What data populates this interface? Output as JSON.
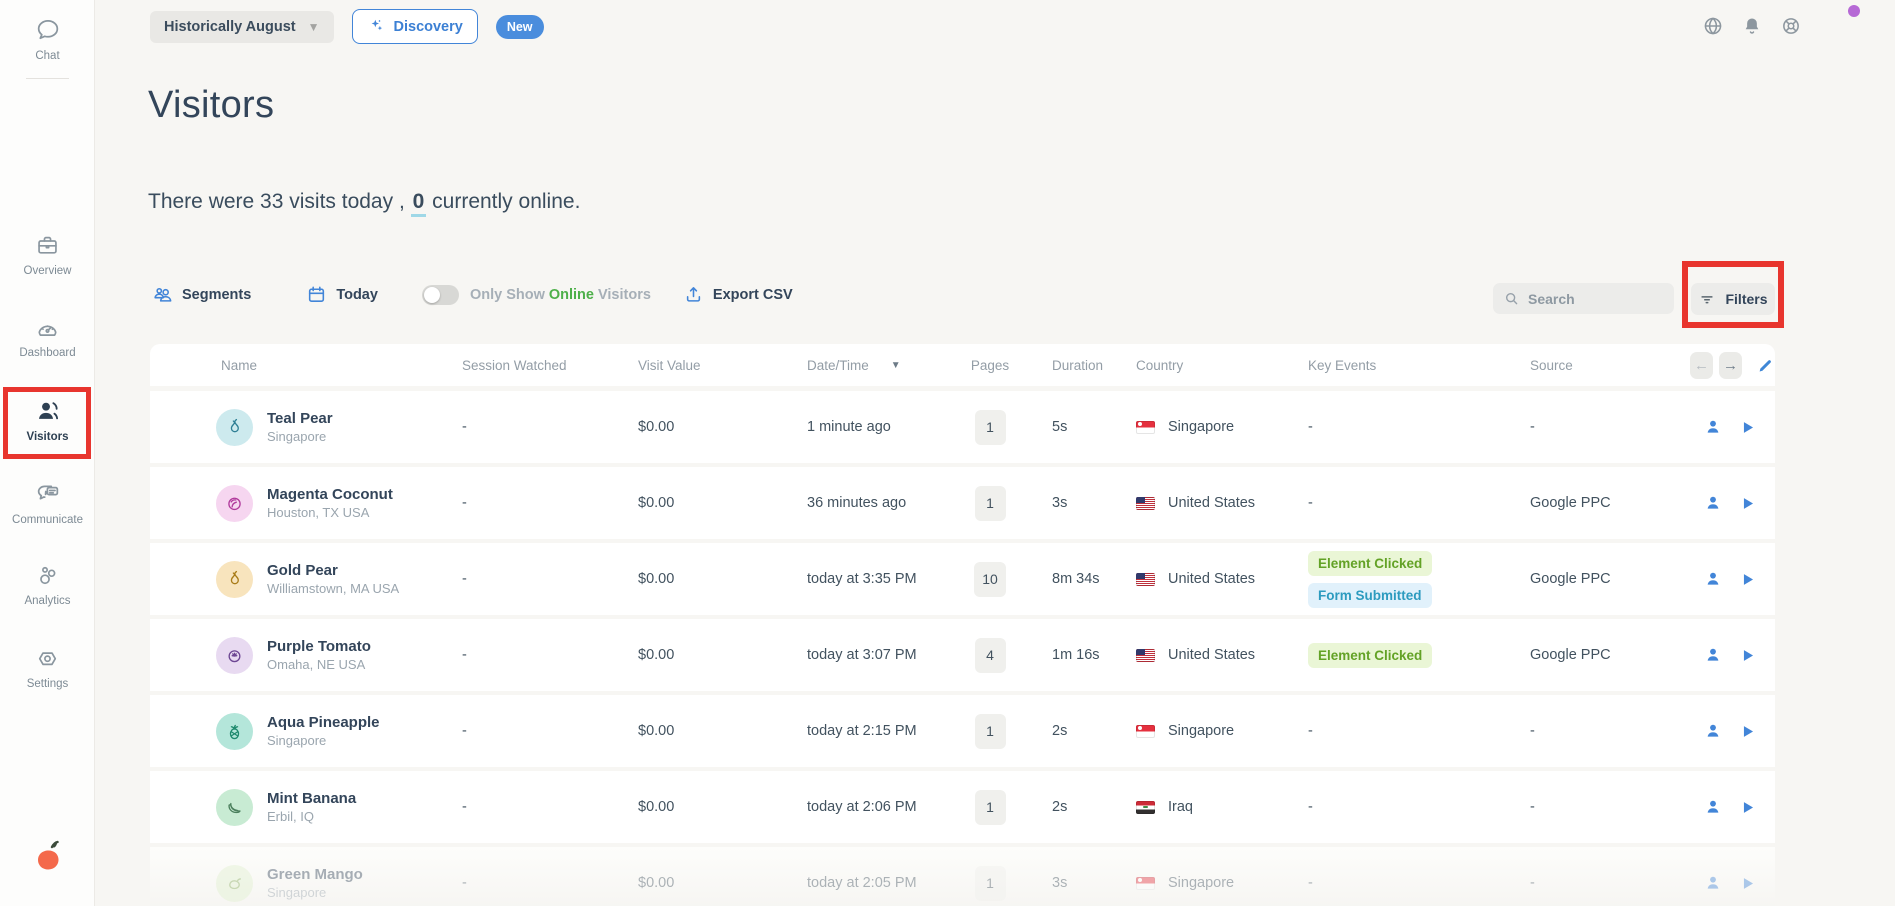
{
  "colors": {
    "accent_blue": "#4285d8",
    "navy_text": "#33455a",
    "annotation_red": "#e8352e",
    "online_green": "#4eb04a",
    "page_background": "#f7f6f3",
    "badge_green_bg": "#eaf6d6",
    "badge_green_fg": "#63a226",
    "badge_blue_bg": "#e1f1fb",
    "badge_blue_fg": "#2c9bbf"
  },
  "sidebar": {
    "items": [
      {
        "label": "Chat",
        "icon": "chat-bubble-icon"
      },
      {
        "label": "Overview",
        "icon": "briefcase-icon"
      },
      {
        "label": "Dashboard",
        "icon": "gauge-icon"
      },
      {
        "label": "Visitors",
        "icon": "visitors-people-icon",
        "active": true,
        "highlighted": true
      },
      {
        "label": "Communicate",
        "icon": "chat-bubbles-icon"
      },
      {
        "label": "Analytics",
        "icon": "bubbles-icon"
      },
      {
        "label": "Settings",
        "icon": "hexagon-nut-icon"
      }
    ],
    "logo": "orange-fruit-logo"
  },
  "topbar": {
    "period_selector": "Historically August",
    "discovery_label": "Discovery",
    "new_badge": "New"
  },
  "header": {
    "title": "Visitors",
    "subtitle_prefix": "There were 33 visits today ,",
    "online_count": "0",
    "subtitle_suffix": "currently online."
  },
  "toolbar": {
    "segments_label": "Segments",
    "today_label": "Today",
    "online_toggle_state": "off",
    "toggle_label_part1": "Only Show",
    "toggle_label_online": "Online",
    "toggle_label_part2": "Visitors",
    "export_label": "Export CSV",
    "search_placeholder": "Search",
    "filters_label": "Filters"
  },
  "table": {
    "columns": [
      "Name",
      "Session Watched",
      "Visit Value",
      "Date/Time",
      "Pages",
      "Duration",
      "Country",
      "Key Events",
      "Source"
    ],
    "sorted_column": "Date/Time",
    "empty_placeholder": "-",
    "key_event_styles": {
      "Element Clicked": {
        "bg": "#eaf6d6",
        "fg": "#63a226"
      },
      "Form Submitted": {
        "bg": "#e1f1fb",
        "fg": "#2c9bbf"
      }
    },
    "rows": [
      {
        "name": "Teal Pear",
        "location": "Singapore",
        "fruit": "pear",
        "avatar_bg": "#cdeaee",
        "avatar_fg": "#2f7f95",
        "session_watched": "-",
        "visit_value": "$0.00",
        "datetime": "1 minute ago",
        "pages": "1",
        "duration": "5s",
        "country": "Singapore",
        "flag": "sg",
        "key_events": [],
        "source": "-",
        "faded": false
      },
      {
        "name": "Magenta Coconut",
        "location": "Houston, TX USA",
        "fruit": "coconut",
        "avatar_bg": "#f6d6f0",
        "avatar_fg": "#b13a9c",
        "session_watched": "-",
        "visit_value": "$0.00",
        "datetime": "36 minutes ago",
        "pages": "1",
        "duration": "3s",
        "country": "United States",
        "flag": "us",
        "key_events": [],
        "source": "Google PPC",
        "faded": false
      },
      {
        "name": "Gold Pear",
        "location": "Williamstown, MA USA",
        "fruit": "pear",
        "avatar_bg": "#f8e4bd",
        "avatar_fg": "#a97c18",
        "session_watched": "-",
        "visit_value": "$0.00",
        "datetime": "today at 3:35 PM",
        "pages": "10",
        "duration": "8m 34s",
        "country": "United States",
        "flag": "us",
        "key_events": [
          "Element Clicked",
          "Form Submitted"
        ],
        "source": "Google PPC",
        "faded": false
      },
      {
        "name": "Purple Tomato",
        "location": "Omaha, NE USA",
        "fruit": "tomato",
        "avatar_bg": "#e8daf1",
        "avatar_fg": "#6d4693",
        "session_watched": "-",
        "visit_value": "$0.00",
        "datetime": "today at 3:07 PM",
        "pages": "4",
        "duration": "1m 16s",
        "country": "United States",
        "flag": "us",
        "key_events": [
          "Element Clicked"
        ],
        "source": "Google PPC",
        "faded": false
      },
      {
        "name": "Aqua Pineapple",
        "location": "Singapore",
        "fruit": "pineapple",
        "avatar_bg": "#b4e6da",
        "avatar_fg": "#1f8a6e",
        "session_watched": "-",
        "visit_value": "$0.00",
        "datetime": "today at 2:15 PM",
        "pages": "1",
        "duration": "2s",
        "country": "Singapore",
        "flag": "sg",
        "key_events": [],
        "source": "-",
        "faded": false
      },
      {
        "name": "Mint Banana",
        "location": "Erbil, IQ",
        "fruit": "banana",
        "avatar_bg": "#c8ebd3",
        "avatar_fg": "#4a7f5c",
        "session_watched": "-",
        "visit_value": "$0.00",
        "datetime": "today at 2:06 PM",
        "pages": "1",
        "duration": "2s",
        "country": "Iraq",
        "flag": "iq",
        "key_events": [],
        "source": "-",
        "faded": false
      },
      {
        "name": "Green Mango",
        "location": "Singapore",
        "fruit": "mango",
        "avatar_bg": "#e0f0cf",
        "avatar_fg": "#85aa59",
        "session_watched": "-",
        "visit_value": "$0.00",
        "datetime": "today at 2:05 PM",
        "pages": "1",
        "duration": "3s",
        "country": "Singapore",
        "flag": "sg",
        "key_events": [],
        "source": "-",
        "faded": true
      }
    ]
  }
}
